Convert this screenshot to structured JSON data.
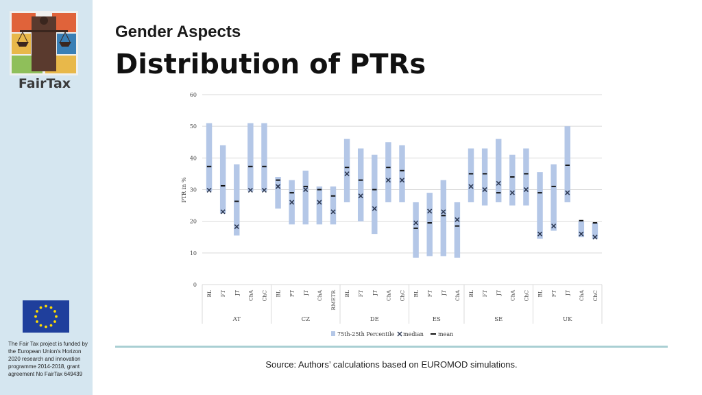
{
  "sidebar": {
    "logo_text": "FairTax",
    "funding_text": "The Fair Tax project is funded by the European Union's Horizon 2020 research and innovation programme 2014-2018, grant agreement No FairTax 649439"
  },
  "header": {
    "subtitle": "Gender Aspects",
    "title": "Distribution of PTRs"
  },
  "footer": {
    "source": "Source: Authors’ calculations based on EUROMOD simulations."
  },
  "colors": {
    "bar": "#b4c7e7",
    "marker": "#2f3b55",
    "grid": "#d9d9d9"
  },
  "chart_data": {
    "type": "box-range",
    "ylabel": "PTR in %",
    "ylim": [
      0,
      60
    ],
    "yticks": [
      0,
      10,
      20,
      30,
      40,
      50,
      60
    ],
    "grid": true,
    "legend_position": "bottom",
    "legend": [
      "75th-25th Percentile",
      "median",
      "mean"
    ],
    "groups": [
      {
        "name": "AT",
        "categories": [
          "BL",
          "FT",
          "JT",
          "ChA",
          "ChC"
        ],
        "p25": [
          29.5,
          22.5,
          15.5,
          29.5,
          29.5
        ],
        "p75": [
          51,
          44,
          38,
          51,
          51
        ],
        "median": [
          29.8,
          23,
          18.3,
          29.8,
          29.8
        ],
        "mean": [
          37.3,
          31.2,
          26.3,
          37.3,
          37.3
        ]
      },
      {
        "name": "CZ",
        "categories": [
          "BL",
          "PT",
          "JT",
          "ChA",
          "RMETR"
        ],
        "p25": [
          24,
          19,
          19,
          19,
          19
        ],
        "p75": [
          34,
          33,
          36,
          31,
          31
        ],
        "median": [
          31,
          26,
          30,
          26,
          23
        ],
        "mean": [
          33,
          29,
          31,
          30,
          28
        ]
      },
      {
        "name": "DE",
        "categories": [
          "BL",
          "FT",
          "JT",
          "ChA",
          "ChC"
        ],
        "p25": [
          26,
          20,
          16,
          26,
          26
        ],
        "p75": [
          46,
          43,
          41,
          45,
          44
        ],
        "median": [
          35,
          28,
          24,
          33,
          33
        ],
        "mean": [
          37,
          33,
          30,
          37,
          36
        ]
      },
      {
        "name": "ES",
        "categories": [
          "BL",
          "FT",
          "JT",
          "ChA"
        ],
        "p25": [
          8.5,
          9,
          9,
          8.5
        ],
        "p75": [
          26,
          29,
          33,
          26
        ],
        "median": [
          19.5,
          23.2,
          23,
          20.5
        ],
        "mean": [
          17.8,
          19.5,
          21.8,
          18.5
        ]
      },
      {
        "name": "SE",
        "categories": [
          "BL",
          "FT",
          "JT",
          "ChA",
          "ChC"
        ],
        "p25": [
          26,
          25,
          26,
          25,
          25
        ],
        "p75": [
          43,
          43,
          46,
          41,
          43
        ],
        "median": [
          31,
          30,
          32,
          29,
          30
        ],
        "mean": [
          35,
          35,
          29,
          34,
          35
        ]
      },
      {
        "name": "UK",
        "categories": [
          "BL",
          "FT",
          "JT",
          "ChA",
          "ChC"
        ],
        "p25": [
          14.5,
          17,
          26,
          15,
          14.5
        ],
        "p75": [
          35.5,
          38,
          50,
          20,
          19.5
        ],
        "median": [
          16,
          18.5,
          29,
          16,
          15
        ],
        "mean": [
          29,
          31,
          37.7,
          20.2,
          19.5
        ]
      }
    ]
  }
}
